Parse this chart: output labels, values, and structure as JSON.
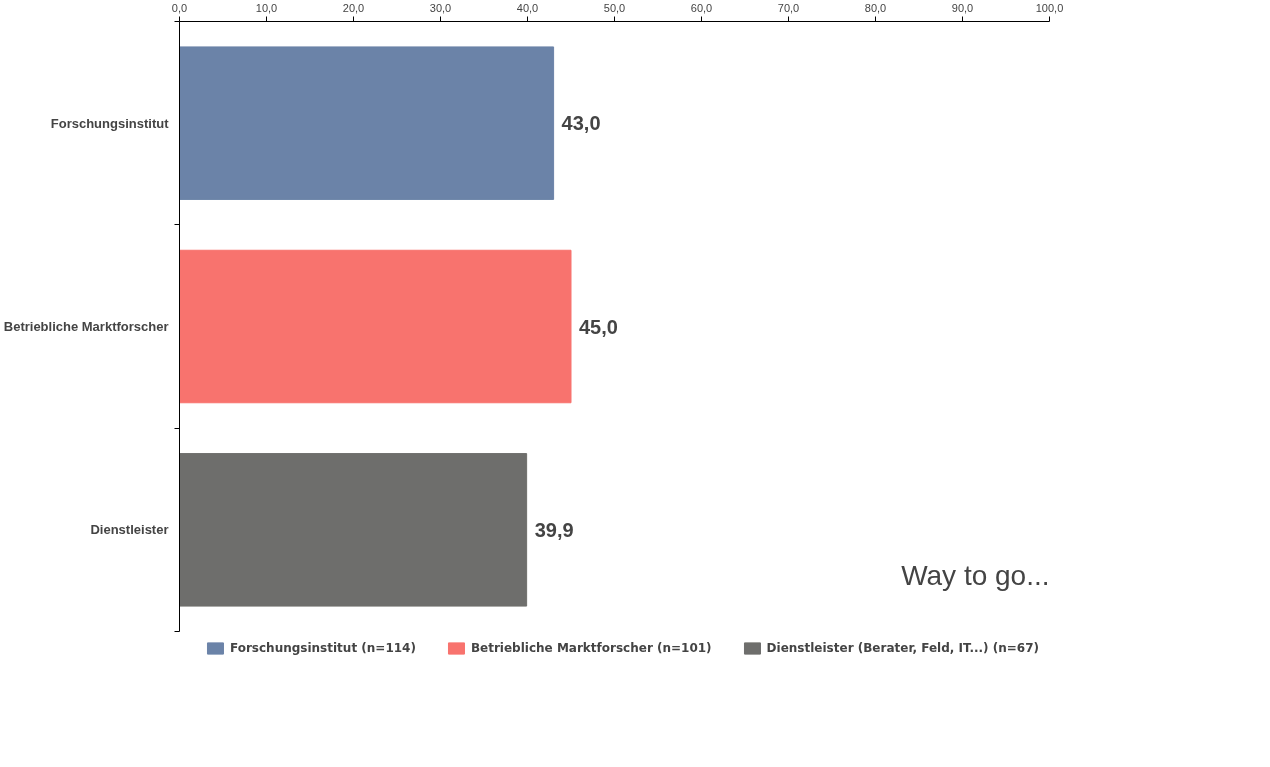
{
  "chart_data": {
    "type": "bar",
    "orientation": "horizontal",
    "categories": [
      "Forschungsinstitut",
      "Betriebliche Marktforscher",
      "Dienstleister"
    ],
    "series": [
      {
        "name": "Forschungsinstitut (n=114)",
        "color": "#6b83a8",
        "values": [
          43.0,
          null,
          null
        ],
        "value_labels": [
          "43,0",
          null,
          null
        ]
      },
      {
        "name": "Betriebliche Marktforscher (n=101)",
        "color": "#f8736e",
        "values": [
          null,
          45.0,
          null
        ],
        "value_labels": [
          null,
          "45,0",
          null
        ]
      },
      {
        "name": "Dienstleister (Berater, Feld, IT...) (n=67)",
        "color": "#6e6e6c",
        "values": [
          null,
          null,
          39.9
        ],
        "value_labels": [
          null,
          null,
          "39,9"
        ]
      }
    ],
    "xlim": [
      0,
      100
    ],
    "xticks": [
      {
        "value": 0,
        "label": "0,0"
      },
      {
        "value": 10,
        "label": "10,0"
      },
      {
        "value": 20,
        "label": "20,0"
      },
      {
        "value": 30,
        "label": "30,0"
      },
      {
        "value": 40,
        "label": "40,0"
      },
      {
        "value": 50,
        "label": "50,0"
      },
      {
        "value": 60,
        "label": "60,0"
      },
      {
        "value": 70,
        "label": "70,0"
      },
      {
        "value": 80,
        "label": "80,0"
      },
      {
        "value": 90,
        "label": "90,0"
      },
      {
        "value": 100,
        "label": "100,0"
      }
    ],
    "annotations": [
      "Way to go..."
    ],
    "grid": false,
    "legend": "bottom"
  }
}
